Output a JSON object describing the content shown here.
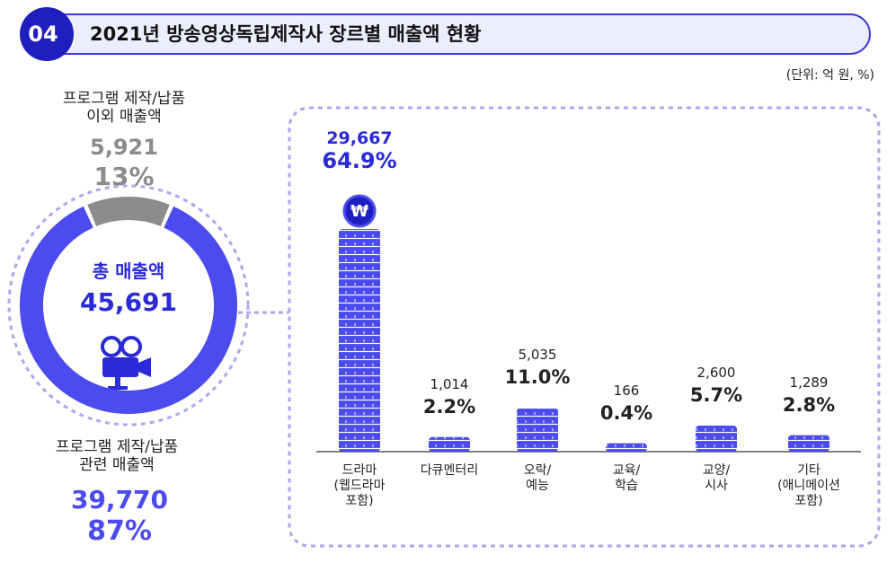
{
  "header": {
    "number": "04",
    "title": "2021년 방송영상독립제작사 장르별 매출액 현황",
    "unit": "(단위: 억 원, %)"
  },
  "chart_data": [
    {
      "type": "donut",
      "center_title": "총 매출액",
      "total": 45691,
      "total_label": "45,691",
      "categories": [
        "프로그램 제작/납품\n관련 매출액",
        "프로그램 제작/납품\n이외 매출액"
      ],
      "values": [
        39770,
        5921
      ],
      "value_labels": [
        "39,770",
        "5,921"
      ],
      "shares": [
        87,
        13
      ],
      "share_labels": [
        "87%",
        "13%"
      ],
      "colors": [
        "#4b4bf0",
        "#8c8c8c"
      ]
    },
    {
      "type": "bar",
      "categories": [
        "드라마\n(웹드라마\n포함)",
        "다큐멘터리",
        "오락/\n예능",
        "교육/\n학습",
        "교양/\n시사",
        "기타\n(애니메이션\n포함)"
      ],
      "values": [
        29667,
        1014,
        5035,
        166,
        2600,
        1289
      ],
      "value_labels": [
        "29,667",
        "1,014",
        "5,035",
        "166",
        "2,600",
        "1,289"
      ],
      "shares": [
        64.9,
        2.2,
        11.0,
        0.4,
        5.7,
        2.8
      ],
      "share_labels": [
        "64.9%",
        "2.2%",
        "11.0%",
        "0.4%",
        "5.7%",
        "2.8%"
      ],
      "color": "#4b4bf0"
    }
  ]
}
